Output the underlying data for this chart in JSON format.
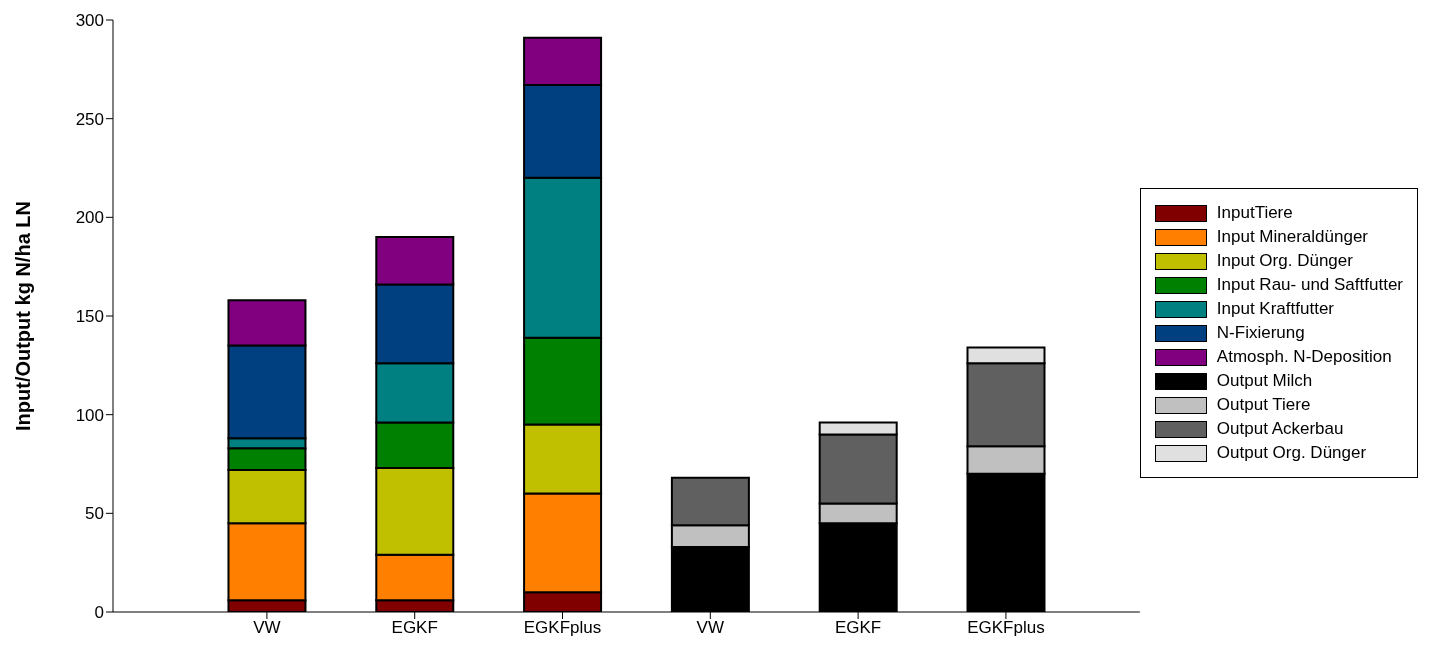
{
  "chart_data": {
    "type": "bar",
    "stacked": true,
    "ylabel": "Input/Output kg N/ha LN",
    "categories": [
      "VW",
      "EGKF",
      "EGKFplus",
      "VW",
      "EGKF",
      "EGKFplus"
    ],
    "ylim": [
      0,
      300
    ],
    "yticks": [
      0,
      50,
      100,
      150,
      200,
      250,
      300
    ],
    "grid": false,
    "legend": "right",
    "series": [
      {
        "name": "InputTiere",
        "color": "#800000",
        "values": [
          6,
          6,
          10,
          null,
          null,
          null
        ]
      },
      {
        "name": "Input Mineraldünger",
        "color": "#ff8000",
        "values": [
          39,
          23,
          50,
          null,
          null,
          null
        ]
      },
      {
        "name": "Input Org. Dünger",
        "color": "#c0c000",
        "values": [
          27,
          44,
          35,
          null,
          null,
          null
        ]
      },
      {
        "name": "Input Rau- und Saftfutter",
        "color": "#008000",
        "values": [
          11,
          23,
          44,
          null,
          null,
          null
        ]
      },
      {
        "name": "Input Kraftfutter",
        "color": "#008080",
        "values": [
          5,
          30,
          81,
          null,
          null,
          null
        ]
      },
      {
        "name": "N-Fixierung",
        "color": "#004080",
        "values": [
          47,
          40,
          47,
          null,
          null,
          null
        ]
      },
      {
        "name": "Atmosph. N-Deposition",
        "color": "#800080",
        "values": [
          23,
          24,
          24,
          null,
          null,
          null
        ]
      },
      {
        "name": "Output Milch",
        "color": "#000000",
        "values": [
          null,
          null,
          null,
          33,
          45,
          70
        ]
      },
      {
        "name": "Output Tiere",
        "color": "#c0c0c0",
        "values": [
          null,
          null,
          null,
          11,
          10,
          14
        ]
      },
      {
        "name": "Output Ackerbau",
        "color": "#606060",
        "values": [
          null,
          null,
          null,
          24,
          35,
          42
        ]
      },
      {
        "name": "Output Org. Dünger",
        "color": "#e0e0e0",
        "values": [
          null,
          null,
          null,
          null,
          6,
          8
        ]
      }
    ]
  }
}
